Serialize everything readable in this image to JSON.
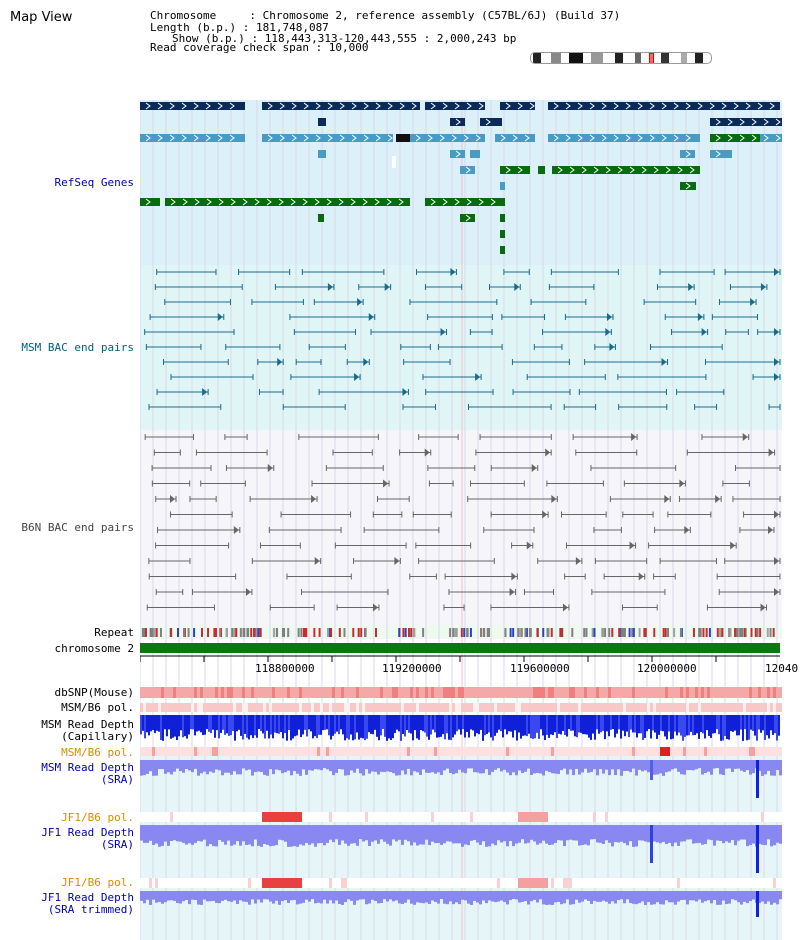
{
  "header": {
    "map_view": "Map View",
    "line1": "Chromosome     : Chromosome 2, reference assembly (C57BL/6J) (Build 37)",
    "line2": "Length (b.p.) : 181,748,087",
    "line3": "Show (b.p.) : 118,443,313-120,443,555 : 2,000,243 bp",
    "line4": "Read coverage check span : 10,000"
  },
  "tracks": {
    "refseq": "RefSeq Genes",
    "msm_bac": "MSM BAC end pairs",
    "b6n_bac": "B6N BAC end pairs",
    "repeat": "Repeat",
    "chromosome": "chromosome 2",
    "dbsnp": "dbSNP(Mouse)",
    "msm_b6_pol_1": "MSM/B6 pol.",
    "msm_read_depth_cap_1": "MSM Read Depth",
    "msm_read_depth_cap_2": "(Capillary)",
    "msm_b6_pol_2": "MSM/B6 pol.",
    "msm_read_depth_sra_1": "MSM Read Depth",
    "msm_read_depth_sra_2": "(SRA)",
    "jf1_b6_pol_1": "JF1/B6 pol.",
    "jf1_read_depth_sra_1": "JF1 Read Depth",
    "jf1_read_depth_sra_2": "(SRA)",
    "jf1_b6_pol_2": "JF1/B6 pol.",
    "jf1_read_depth_trim_1": "JF1 Read Depth",
    "jf1_read_depth_trim_2": "(SRA trimmed)"
  },
  "axis": {
    "ticks": [
      "118800000",
      "119200000",
      "119600000",
      "120000000",
      "12040"
    ]
  },
  "colors": {
    "refseq_bg": "#dbf0f8",
    "msm_bg": "#e0f6f6",
    "b6n_bg": "#f6f6fa",
    "dark_blue": "#0a2a5a",
    "mid_blue": "#4a9ac4",
    "green": "#0a6a10",
    "teal_line": "#1a6a8a",
    "gray_line": "#666666",
    "depth_blue": "#1a2ae0",
    "depth_light": "#8888f0",
    "snp_pink": "#f4a8a8"
  }
}
